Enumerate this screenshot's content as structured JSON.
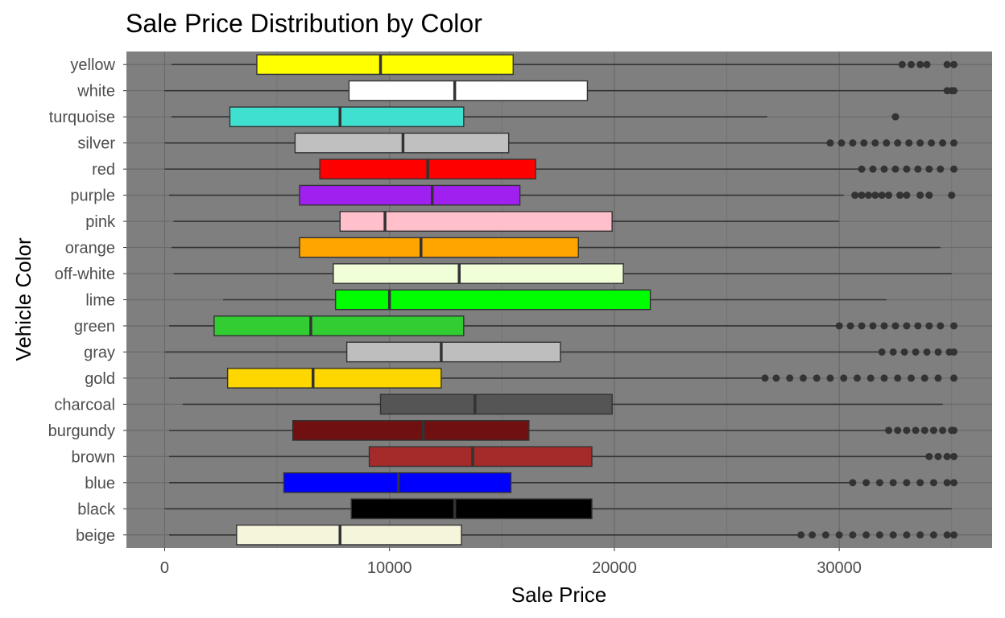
{
  "chart_data": {
    "type": "boxplot",
    "orientation": "horizontal",
    "title": "Sale Price Distribution by Color",
    "xlabel": "Sale Price",
    "ylabel": "Vehicle Color",
    "xlim": [
      -1700,
      36800
    ],
    "xticks": [
      0,
      10000,
      20000,
      30000
    ],
    "grid": true,
    "panel_background": "#7f7f7f",
    "series": [
      {
        "name": "beige",
        "color": "#F5F5DC",
        "whisker_low": 200,
        "q1": 3200,
        "median": 7800,
        "q3": 13200,
        "whisker_high": 28200,
        "outliers": [
          28300,
          28800,
          29400,
          30000,
          30600,
          31200,
          31800,
          32400,
          33000,
          33600,
          34200,
          34800,
          35100
        ]
      },
      {
        "name": "black",
        "color": "#000000",
        "whisker_low": 0,
        "q1": 8300,
        "median": 12900,
        "q3": 19000,
        "whisker_high": 35000,
        "outliers": []
      },
      {
        "name": "blue",
        "color": "#0000FF",
        "whisker_low": 200,
        "q1": 5300,
        "median": 10400,
        "q3": 15400,
        "whisker_high": 30500,
        "outliers": [
          30600,
          31200,
          31800,
          32400,
          33000,
          33600,
          34200,
          34800,
          35100
        ]
      },
      {
        "name": "brown",
        "color": "#A52A2A",
        "whisker_low": 200,
        "q1": 9100,
        "median": 13700,
        "q3": 19000,
        "whisker_high": 33900,
        "outliers": [
          34000,
          34400,
          34800,
          35100
        ]
      },
      {
        "name": "burgundy",
        "color": "#701010",
        "whisker_low": 200,
        "q1": 5700,
        "median": 11500,
        "q3": 16200,
        "whisker_high": 32100,
        "outliers": [
          32200,
          32600,
          33000,
          33400,
          33800,
          34200,
          34600,
          35000,
          35100
        ]
      },
      {
        "name": "charcoal",
        "color": "#555555",
        "whisker_low": 800,
        "q1": 9600,
        "median": 13800,
        "q3": 19900,
        "whisker_high": 34600,
        "outliers": []
      },
      {
        "name": "gold",
        "color": "#FFD700",
        "whisker_low": 200,
        "q1": 2800,
        "median": 6600,
        "q3": 12300,
        "whisker_high": 26600,
        "outliers": [
          26700,
          27200,
          27800,
          28400,
          29000,
          29600,
          30200,
          30800,
          31400,
          32000,
          32600,
          33200,
          33800,
          34400,
          35100
        ]
      },
      {
        "name": "gray",
        "color": "#BEBEBE",
        "whisker_low": 0,
        "q1": 8100,
        "median": 12300,
        "q3": 17600,
        "whisker_high": 31800,
        "outliers": [
          31900,
          32400,
          32900,
          33400,
          33900,
          34400,
          34900,
          35100
        ]
      },
      {
        "name": "green",
        "color": "#32CD32",
        "whisker_low": 200,
        "q1": 2200,
        "median": 6500,
        "q3": 13300,
        "whisker_high": 29900,
        "outliers": [
          30000,
          30500,
          31000,
          31500,
          32000,
          32500,
          33000,
          33500,
          34000,
          34500,
          35100
        ]
      },
      {
        "name": "lime",
        "color": "#00FF00",
        "whisker_low": 2600,
        "q1": 7600,
        "median": 10000,
        "q3": 21600,
        "whisker_high": 32100,
        "outliers": []
      },
      {
        "name": "off-white",
        "color": "#F0FFD8",
        "whisker_low": 400,
        "q1": 7500,
        "median": 13100,
        "q3": 20400,
        "whisker_high": 35000,
        "outliers": []
      },
      {
        "name": "orange",
        "color": "#FFA500",
        "whisker_low": 300,
        "q1": 6000,
        "median": 11400,
        "q3": 18400,
        "whisker_high": 34500,
        "outliers": []
      },
      {
        "name": "pink",
        "color": "#FFC0CB",
        "whisker_low": 400,
        "q1": 7800,
        "median": 9800,
        "q3": 19900,
        "whisker_high": 30000,
        "outliers": []
      },
      {
        "name": "purple",
        "color": "#A020F0",
        "whisker_low": 200,
        "q1": 6000,
        "median": 11900,
        "q3": 15800,
        "whisker_high": 30200,
        "outliers": [
          30700,
          31000,
          31300,
          31600,
          31900,
          32200,
          32700,
          33000,
          33600,
          34000,
          35000
        ]
      },
      {
        "name": "red",
        "color": "#FF0000",
        "whisker_low": 0,
        "q1": 6900,
        "median": 11700,
        "q3": 16500,
        "whisker_high": 30900,
        "outliers": [
          31000,
          31500,
          32000,
          32500,
          33000,
          33500,
          34000,
          34500,
          35100
        ]
      },
      {
        "name": "silver",
        "color": "#C0C0C0",
        "whisker_low": 0,
        "q1": 5800,
        "median": 10600,
        "q3": 15300,
        "whisker_high": 29500,
        "outliers": [
          29600,
          30100,
          30600,
          31100,
          31600,
          32100,
          32600,
          33100,
          33600,
          34100,
          34600,
          35100
        ]
      },
      {
        "name": "turquoise",
        "color": "#40E0D0",
        "whisker_low": 300,
        "q1": 2900,
        "median": 7800,
        "q3": 13300,
        "whisker_high": 26800,
        "outliers": [
          32500
        ]
      },
      {
        "name": "white",
        "color": "#FFFFFF",
        "whisker_low": 0,
        "q1": 8200,
        "median": 12900,
        "q3": 18800,
        "whisker_high": 34700,
        "outliers": [
          34800,
          35000,
          35100
        ]
      },
      {
        "name": "yellow",
        "color": "#FFFF00",
        "whisker_low": 300,
        "q1": 4100,
        "median": 9600,
        "q3": 15500,
        "whisker_high": 32700,
        "outliers": [
          32800,
          33200,
          33600,
          33900,
          34800,
          35100
        ]
      }
    ]
  }
}
